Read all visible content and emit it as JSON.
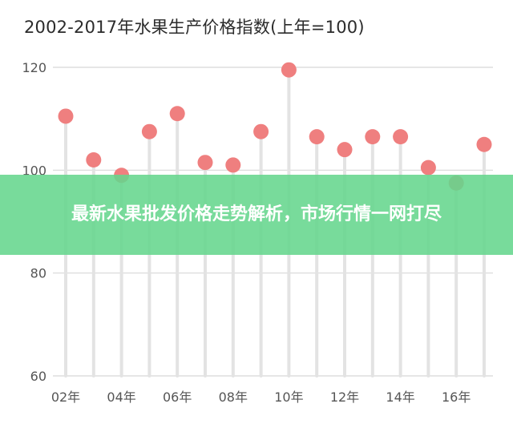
{
  "chart_data": {
    "type": "scatter",
    "title": "2002-2017年水果生产价格指数(上年=100)",
    "x": [
      "02年",
      "03年",
      "04年",
      "05年",
      "06年",
      "07年",
      "08年",
      "09年",
      "10年",
      "11年",
      "12年",
      "13年",
      "14年",
      "15年",
      "16年",
      "17年"
    ],
    "values": [
      110.5,
      102,
      99,
      107.5,
      111,
      101.5,
      101,
      107.5,
      119.5,
      106.5,
      104,
      106.5,
      106.5,
      100.5,
      97.5,
      105
    ],
    "xtick_labels": [
      "02年",
      "04年",
      "06年",
      "08年",
      "10年",
      "12年",
      "14年",
      "16年"
    ],
    "yticks": [
      60,
      80,
      100,
      120
    ],
    "ylim": [
      60,
      120
    ],
    "xlabel": "",
    "ylabel": "",
    "grid": true,
    "colors": {
      "marker": "#ef7f7f",
      "stem": "#e3e3e3",
      "grid": "#d7d7d7"
    }
  },
  "banner": {
    "text": "最新水果批发价格走势解析，市场行情一网打尽",
    "color": "#65d68d"
  }
}
